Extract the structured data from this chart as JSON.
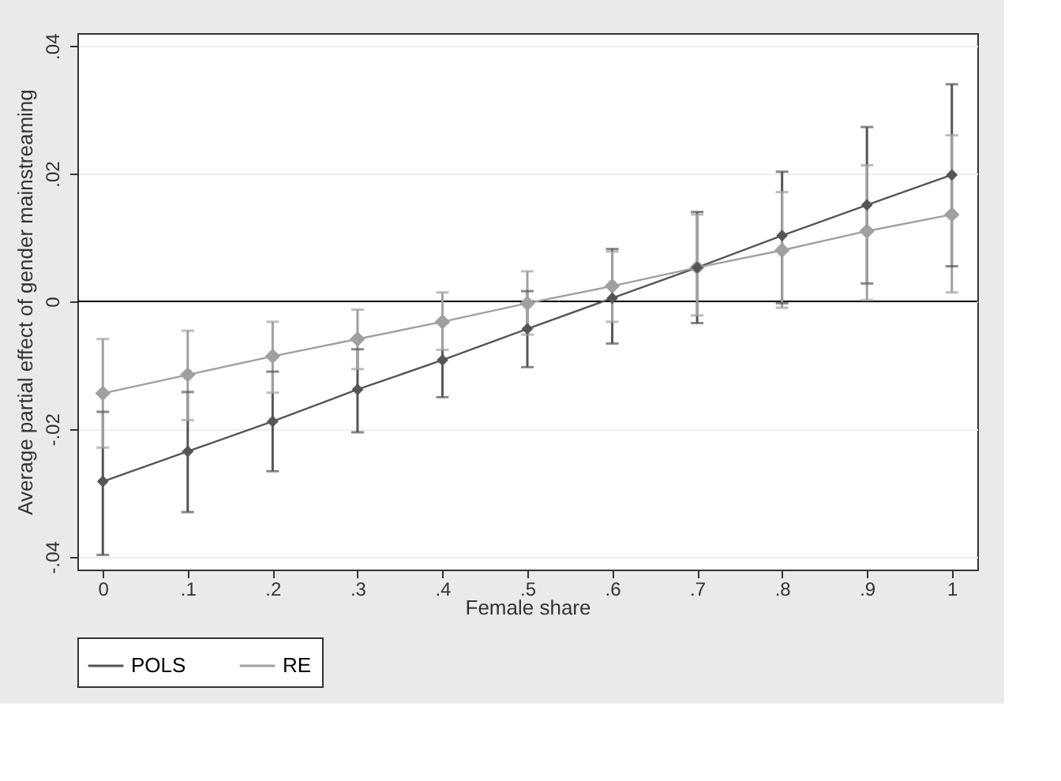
{
  "chart_data": {
    "type": "line",
    "xlabel": "Female share",
    "ylabel": "Average partial effect of gender mainstreaming",
    "x": [
      0,
      0.1,
      0.2,
      0.3,
      0.4,
      0.5,
      0.6,
      0.7,
      0.8,
      0.9,
      1
    ],
    "series": [
      {
        "name": "POLS",
        "color": "#555555",
        "values": [
          -0.0282,
          -0.0235,
          -0.0188,
          -0.0138,
          -0.0092,
          -0.0043,
          0.0005,
          0.0053,
          0.0103,
          0.0151,
          0.0198
        ],
        "errors": [
          [
            -0.0397,
            -0.0173
          ],
          [
            -0.033,
            -0.0142
          ],
          [
            -0.0266,
            -0.011
          ],
          [
            -0.0205,
            -0.0075
          ],
          [
            -0.015,
            -0.0034
          ],
          [
            -0.0103,
            0.0016
          ],
          [
            -0.0066,
            0.0082
          ],
          [
            -0.0034,
            0.014
          ],
          [
            -0.0003,
            0.0203
          ],
          [
            0.0028,
            0.0273
          ],
          [
            0.0055,
            0.034
          ]
        ]
      },
      {
        "name": "RE",
        "color": "#a0a0a0",
        "values": [
          -0.0144,
          -0.0115,
          -0.0086,
          -0.0059,
          -0.0032,
          -0.0003,
          0.0024,
          0.0053,
          0.008,
          0.011,
          0.0136
        ],
        "errors": [
          [
            -0.0229,
            -0.0059
          ],
          [
            -0.0186,
            -0.0046
          ],
          [
            -0.0143,
            -0.0032
          ],
          [
            -0.0106,
            -0.0013
          ],
          [
            -0.0076,
            0.0014
          ],
          [
            -0.0052,
            0.0047
          ],
          [
            -0.0032,
            0.0078
          ],
          [
            -0.0022,
            0.0136
          ],
          [
            -0.001,
            0.0171
          ],
          [
            0.0002,
            0.0213
          ],
          [
            0.0014,
            0.026
          ]
        ]
      }
    ],
    "xlim": [
      -0.03,
      1.03
    ],
    "xticks": [
      0,
      {
        "value": 0.1,
        "label": ".1"
      },
      {
        "value": 0.2,
        "label": ".2"
      },
      {
        "value": 0.3,
        "label": ".3"
      },
      {
        "value": 0.4,
        "label": ".4"
      },
      {
        "value": 0.5,
        "label": ".5"
      },
      {
        "value": 0.6,
        "label": ".6"
      },
      {
        "value": 0.7,
        "label": ".7"
      },
      {
        "value": 0.8,
        "label": ".8"
      },
      {
        "value": 0.9,
        "label": ".9"
      },
      1
    ],
    "ylim": [
      -0.042,
      0.042
    ],
    "yticks": [
      {
        "value": -0.04,
        "label": "-.04"
      },
      {
        "value": -0.02,
        "label": "-.02"
      },
      0,
      {
        "value": 0.02,
        "label": ".02"
      },
      {
        "value": 0.04,
        "label": ".04"
      }
    ],
    "ref_lines": [
      {
        "axis": "y",
        "value": 0,
        "color": "#000000"
      }
    ],
    "grid": "y",
    "legend": "bottom",
    "marker": "diamond",
    "line_style": "solid"
  }
}
